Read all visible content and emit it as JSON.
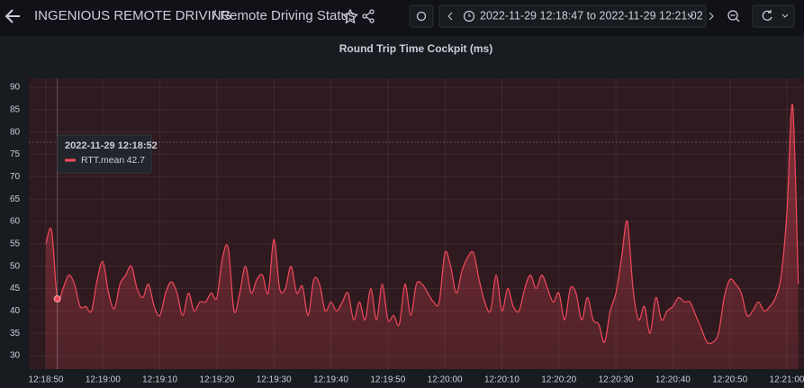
{
  "header": {
    "breadcrumb": "INGENIOUS REMOTE DRIVING",
    "page": "/ Remote Driving Status",
    "time_range": "2022-11-29 12:18:47 to 2022-11-29 12:21:02"
  },
  "chart_data": {
    "type": "line",
    "title": "Round Trip Time Cockpit (ms)",
    "x": [
      "12:18:50",
      "12:18:51",
      "12:18:52",
      "12:18:53",
      "12:18:54",
      "12:18:55",
      "12:18:56",
      "12:18:57",
      "12:18:58",
      "12:18:59",
      "12:19:00",
      "12:19:01",
      "12:19:02",
      "12:19:03",
      "12:19:04",
      "12:19:05",
      "12:19:06",
      "12:19:07",
      "12:19:08",
      "12:19:09",
      "12:19:10",
      "12:19:11",
      "12:19:12",
      "12:19:13",
      "12:19:14",
      "12:19:15",
      "12:19:16",
      "12:19:17",
      "12:19:18",
      "12:19:19",
      "12:19:20",
      "12:19:21",
      "12:19:22",
      "12:19:23",
      "12:19:24",
      "12:19:25",
      "12:19:26",
      "12:19:27",
      "12:19:28",
      "12:19:29",
      "12:19:30",
      "12:19:31",
      "12:19:32",
      "12:19:33",
      "12:19:34",
      "12:19:35",
      "12:19:36",
      "12:19:37",
      "12:19:38",
      "12:19:39",
      "12:19:40",
      "12:19:41",
      "12:19:42",
      "12:19:43",
      "12:19:44",
      "12:19:45",
      "12:19:46",
      "12:19:47",
      "12:19:48",
      "12:19:49",
      "12:19:50",
      "12:19:51",
      "12:19:52",
      "12:19:53",
      "12:19:54",
      "12:19:55",
      "12:19:56",
      "12:19:57",
      "12:19:58",
      "12:19:59",
      "12:20:00",
      "12:20:01",
      "12:20:02",
      "12:20:03",
      "12:20:04",
      "12:20:05",
      "12:20:06",
      "12:20:07",
      "12:20:08",
      "12:20:09",
      "12:20:10",
      "12:20:11",
      "12:20:12",
      "12:20:13",
      "12:20:14",
      "12:20:15",
      "12:20:16",
      "12:20:17",
      "12:20:18",
      "12:20:19",
      "12:20:20",
      "12:20:21",
      "12:20:22",
      "12:20:23",
      "12:20:24",
      "12:20:25",
      "12:20:26",
      "12:20:27",
      "12:20:28",
      "12:20:29",
      "12:20:30",
      "12:20:31",
      "12:20:32",
      "12:20:33",
      "12:20:34",
      "12:20:35",
      "12:20:36",
      "12:20:37",
      "12:20:38",
      "12:20:39",
      "12:20:40",
      "12:20:41",
      "12:20:42",
      "12:20:43",
      "12:20:44",
      "12:20:45",
      "12:20:46",
      "12:20:47",
      "12:20:48",
      "12:20:49",
      "12:20:50",
      "12:20:51",
      "12:20:52",
      "12:20:53",
      "12:20:54",
      "12:20:55",
      "12:20:56",
      "12:20:57",
      "12:20:58",
      "12:20:59",
      "12:21:00",
      "12:21:01",
      "12:21:02"
    ],
    "series": [
      {
        "name": "RTT.mean",
        "color": "#f2495c",
        "values": [
          55,
          58,
          42.7,
          45,
          48,
          46,
          41,
          41,
          40,
          47,
          51,
          44,
          40.5,
          46,
          48,
          50,
          45,
          43,
          46,
          41,
          39,
          44,
          46.5,
          44,
          39,
          44,
          40,
          42,
          42,
          44,
          43,
          52,
          54,
          40,
          44,
          50,
          44,
          47,
          48,
          44,
          56,
          45,
          45,
          50,
          44,
          45.5,
          39,
          47,
          46,
          40,
          42,
          40,
          42,
          44,
          38,
          42,
          38,
          45,
          38,
          46,
          38,
          39,
          37,
          46,
          39,
          46,
          46,
          44,
          42,
          42,
          53,
          50,
          44,
          49,
          52,
          53,
          47,
          42,
          40,
          48,
          40,
          45,
          41,
          40,
          45,
          48,
          45,
          48,
          45,
          42,
          44,
          38,
          45,
          44,
          38,
          43,
          38,
          37,
          33,
          40,
          44,
          52,
          60,
          45,
          38,
          41,
          35,
          43,
          38,
          40,
          41,
          43,
          42,
          42,
          39,
          36,
          33,
          33,
          35,
          43,
          47,
          46,
          44,
          39,
          40,
          42,
          40,
          41,
          43,
          48,
          62,
          86,
          46
        ]
      }
    ],
    "xlim": [
      "12:18:47",
      "12:21:03"
    ],
    "xticks": [
      "12:18:50",
      "12:19:00",
      "12:19:10",
      "12:19:20",
      "12:19:30",
      "12:19:40",
      "12:19:50",
      "12:20:00",
      "12:20:10",
      "12:20:20",
      "12:20:30",
      "12:20:40",
      "12:20:50",
      "12:21:00"
    ],
    "ylim": [
      27,
      92
    ],
    "yticks": [
      30,
      35,
      40,
      45,
      50,
      55,
      60,
      65,
      70,
      75,
      80,
      85,
      90
    ],
    "grid": true,
    "tooltip": {
      "time": "2022-11-29 12:18:52"
    }
  }
}
